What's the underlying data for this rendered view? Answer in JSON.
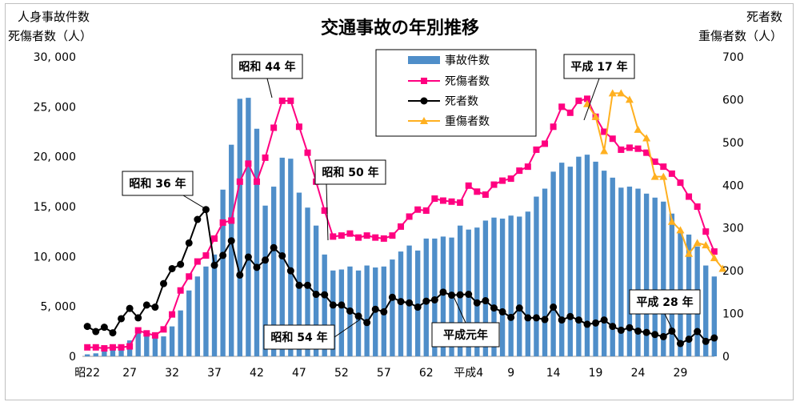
{
  "chart_data": {
    "type": "bar-line-combo",
    "title": "交通事故の年別推移",
    "left_axis_label": [
      "人身事故件数",
      "死傷者数（人）"
    ],
    "right_axis_label": [
      "死者数",
      "重傷者数（人）"
    ],
    "left_ylim": [
      0,
      30000
    ],
    "right_ylim": [
      0,
      700
    ],
    "left_ticks": [
      "0",
      "5, 000",
      "10, 000",
      "15, 000",
      "20, 000",
      "25, 000",
      "30, 000"
    ],
    "right_ticks": [
      "0",
      "100",
      "200",
      "300",
      "400",
      "500",
      "600",
      "700"
    ],
    "x_tick_labels": [
      {
        "index": 0,
        "label": "昭22"
      },
      {
        "index": 5,
        "label": "27"
      },
      {
        "index": 10,
        "label": "32"
      },
      {
        "index": 15,
        "label": "37"
      },
      {
        "index": 20,
        "label": "42"
      },
      {
        "index": 25,
        "label": "47"
      },
      {
        "index": 30,
        "label": "52"
      },
      {
        "index": 35,
        "label": "57"
      },
      {
        "index": 40,
        "label": "62"
      },
      {
        "index": 45,
        "label": "平成4"
      },
      {
        "index": 50,
        "label": "9"
      },
      {
        "index": 55,
        "label": "14"
      },
      {
        "index": 60,
        "label": "19"
      },
      {
        "index": 65,
        "label": "24"
      },
      {
        "index": 70,
        "label": "29"
      }
    ],
    "grid": false,
    "legend_position": "top-center",
    "legend": [
      {
        "name": "事故件数",
        "kind": "bar",
        "color": "#4f8ec9"
      },
      {
        "name": "死傷者数",
        "kind": "line-square",
        "color": "#ff0080"
      },
      {
        "name": "死者数",
        "kind": "line-circle",
        "color": "#000000"
      },
      {
        "name": "重傷者数",
        "kind": "line-triangle",
        "color": "#ffb020"
      }
    ],
    "series": [
      {
        "name": "事故件数",
        "axis": "left",
        "values": [
          200,
          300,
          500,
          700,
          1100,
          1600,
          2800,
          2500,
          2300,
          2000,
          3000,
          4600,
          6600,
          8000,
          9000,
          10200,
          16700,
          21200,
          25800,
          25900,
          22800,
          15100,
          17000,
          19900,
          19800,
          16400,
          14900,
          13100,
          10200,
          8600,
          8700,
          9000,
          8600,
          9100,
          8900,
          9000,
          9700,
          10500,
          11100,
          10600,
          11800,
          11800,
          12000,
          11900,
          13100,
          12700,
          12900,
          13600,
          13900,
          13800,
          14100,
          14000,
          14500,
          16000,
          16800,
          18500,
          19400,
          19000,
          20000,
          20200,
          19500,
          18600,
          17900,
          16900,
          17000,
          16800,
          16300,
          15900,
          15500,
          14300,
          12500,
          12200,
          11000,
          9100,
          8000
        ]
      },
      {
        "name": "死傷者数",
        "axis": "left",
        "values": [
          900,
          900,
          800,
          900,
          900,
          1000,
          2600,
          2300,
          2100,
          2700,
          4200,
          6600,
          8000,
          9500,
          10100,
          11800,
          13400,
          13600,
          17500,
          19300,
          17500,
          19900,
          22900,
          25600,
          25600,
          23000,
          20400,
          17500,
          14600,
          12000,
          12100,
          12300,
          11900,
          12100,
          11900,
          11800,
          12100,
          13000,
          14000,
          14700,
          14600,
          15800,
          15600,
          15500,
          15400,
          17100,
          16500,
          16200,
          17200,
          17600,
          17800,
          18600,
          19000,
          20700,
          21300,
          23000,
          25000,
          24400,
          25600,
          25800,
          24000,
          22500,
          21800,
          20700,
          20900,
          20800,
          20400,
          19500,
          19000,
          18300,
          17400,
          16000,
          15000,
          12500,
          10500
        ]
      },
      {
        "name": "死者数",
        "axis": "right",
        "values": [
          70,
          58,
          68,
          55,
          88,
          112,
          90,
          120,
          115,
          170,
          205,
          215,
          265,
          320,
          343,
          213,
          236,
          270,
          190,
          232,
          208,
          225,
          254,
          235,
          200,
          166,
          166,
          145,
          144,
          120,
          120,
          106,
          94,
          79,
          110,
          104,
          138,
          128,
          125,
          115,
          129,
          132,
          150,
          143,
          144,
          145,
          125,
          130,
          113,
          104,
          91,
          113,
          90,
          90,
          86,
          115,
          85,
          93,
          85,
          75,
          78,
          85,
          70,
          61,
          67,
          59,
          56,
          51,
          46,
          59,
          30,
          40,
          58,
          35,
          43
        ]
      },
      {
        "name": "重傷者数",
        "axis": "right",
        "values": [
          null,
          null,
          null,
          null,
          null,
          null,
          null,
          null,
          null,
          null,
          null,
          null,
          null,
          null,
          null,
          null,
          null,
          null,
          null,
          null,
          null,
          null,
          null,
          null,
          null,
          null,
          null,
          null,
          null,
          null,
          null,
          null,
          null,
          null,
          null,
          null,
          null,
          null,
          null,
          null,
          null,
          null,
          null,
          null,
          null,
          null,
          null,
          null,
          null,
          null,
          null,
          null,
          null,
          null,
          null,
          null,
          null,
          null,
          null,
          590,
          560,
          480,
          615,
          615,
          600,
          530,
          510,
          420,
          420,
          315,
          295,
          240,
          265,
          260,
          230,
          205
        ]
      }
    ],
    "annotations": [
      {
        "text": "昭和 36 年",
        "index": 14
      },
      {
        "text": "昭和 44 年",
        "index": 22
      },
      {
        "text": "昭和 50 年",
        "index": 28
      },
      {
        "text": "昭和 54 年",
        "index": 32
      },
      {
        "text": "平成元年",
        "index": 42
      },
      {
        "text": "平成 17 年",
        "index": 58
      },
      {
        "text": "平成 28 年",
        "index": 69
      }
    ]
  }
}
